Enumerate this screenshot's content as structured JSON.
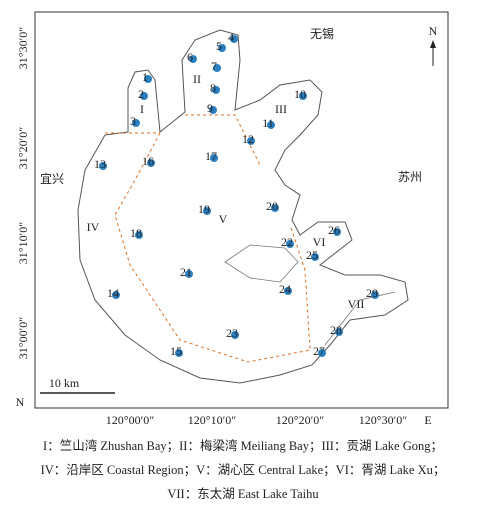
{
  "map": {
    "cities": [
      "无锡",
      "宜兴",
      "苏州"
    ],
    "lat_ticks": [
      "31°30′0″",
      "31°20′0″",
      "31°10′0″",
      "31°00′0″"
    ],
    "lon_ticks": [
      "120°00′0″",
      "120°10′0″",
      "120°20′0″",
      "120°30′0″"
    ],
    "lat_axis": "N",
    "lon_axis": "E",
    "north": "N",
    "scale": "10 km",
    "regions": [
      "I",
      "II",
      "III",
      "IV",
      "V",
      "VI",
      "VII"
    ],
    "stations": [
      "1",
      "2",
      "3",
      "4",
      "5",
      "6",
      "7",
      "8",
      "9",
      "10",
      "11",
      "12",
      "13",
      "14",
      "15",
      "16",
      "17",
      "18",
      "19",
      "20",
      "21",
      "22",
      "23",
      "24",
      "25",
      "26",
      "27",
      "28",
      "29"
    ]
  },
  "caption": [
    "I：竺山湾 Zhushan Bay；II：梅梁湾 Meiliang Bay；III：贡湖 Lake Gong；",
    "IV：沿岸区 Coastal Region；V：湖心区 Central Lake；VI：胥湖 Lake Xu；",
    "VII：东太湖 East Lake Taihu"
  ]
}
